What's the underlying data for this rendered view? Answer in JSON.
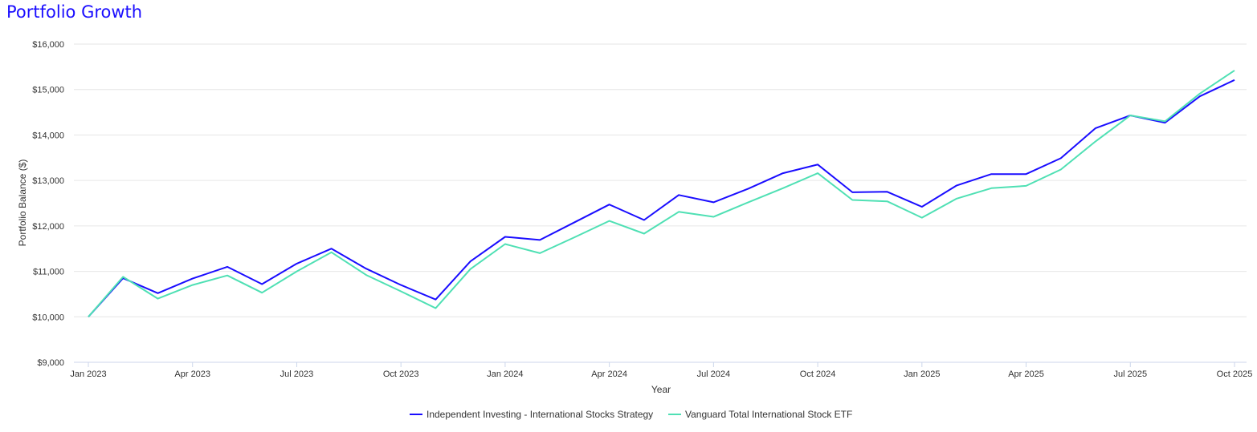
{
  "chart_data": {
    "type": "line",
    "title": "Portfolio Growth",
    "xlabel": "Year",
    "ylabel": "Portfolio Balance ($)",
    "ylim": [
      9000,
      16000
    ],
    "yticks": [
      "$9,000",
      "$10,000",
      "$11,000",
      "$12,000",
      "$13,000",
      "$14,000",
      "$15,000",
      "$16,000"
    ],
    "ytick_values": [
      9000,
      10000,
      11000,
      12000,
      13000,
      14000,
      15000,
      16000
    ],
    "xticks": [
      "Jan 2023",
      "Apr 2023",
      "Jul 2023",
      "Oct 2023",
      "Jan 2024",
      "Apr 2024",
      "Jul 2024",
      "Oct 2024",
      "Jan 2025",
      "Apr 2025",
      "Jul 2025",
      "Oct 2025"
    ],
    "x": [
      "2023-01",
      "2023-02",
      "2023-03",
      "2023-04",
      "2023-05",
      "2023-06",
      "2023-07",
      "2023-08",
      "2023-09",
      "2023-10",
      "2023-11",
      "2023-12",
      "2024-01",
      "2024-02",
      "2024-03",
      "2024-04",
      "2024-05",
      "2024-06",
      "2024-07",
      "2024-08",
      "2024-09",
      "2024-10",
      "2024-11",
      "2024-12",
      "2025-01",
      "2025-02",
      "2025-03",
      "2025-04",
      "2025-05",
      "2025-06",
      "2025-07",
      "2025-08",
      "2025-09",
      "2025-10"
    ],
    "grid": true,
    "legend_position": "bottom",
    "series": [
      {
        "name": "Independent Investing - International Stocks Strategy",
        "color": "#1a0dff",
        "values": [
          10000,
          10850,
          10520,
          10840,
          11100,
          10720,
          11170,
          11500,
          11060,
          10700,
          10380,
          11220,
          11760,
          11690,
          12080,
          12470,
          12130,
          12680,
          12520,
          12820,
          13160,
          13350,
          12740,
          12750,
          12420,
          12890,
          13140,
          13140,
          13490,
          14150,
          14430,
          14270,
          14850,
          15210
        ]
      },
      {
        "name": "Vanguard Total International Stock ETF",
        "color": "#4fe0b4",
        "values": [
          10000,
          10880,
          10400,
          10700,
          10910,
          10530,
          11000,
          11420,
          10920,
          10560,
          10190,
          11050,
          11600,
          11400,
          11750,
          12110,
          11830,
          12310,
          12200,
          12520,
          12830,
          13160,
          12570,
          12540,
          12180,
          12600,
          12830,
          12880,
          13240,
          13860,
          14430,
          14300,
          14910,
          15420
        ]
      }
    ]
  }
}
